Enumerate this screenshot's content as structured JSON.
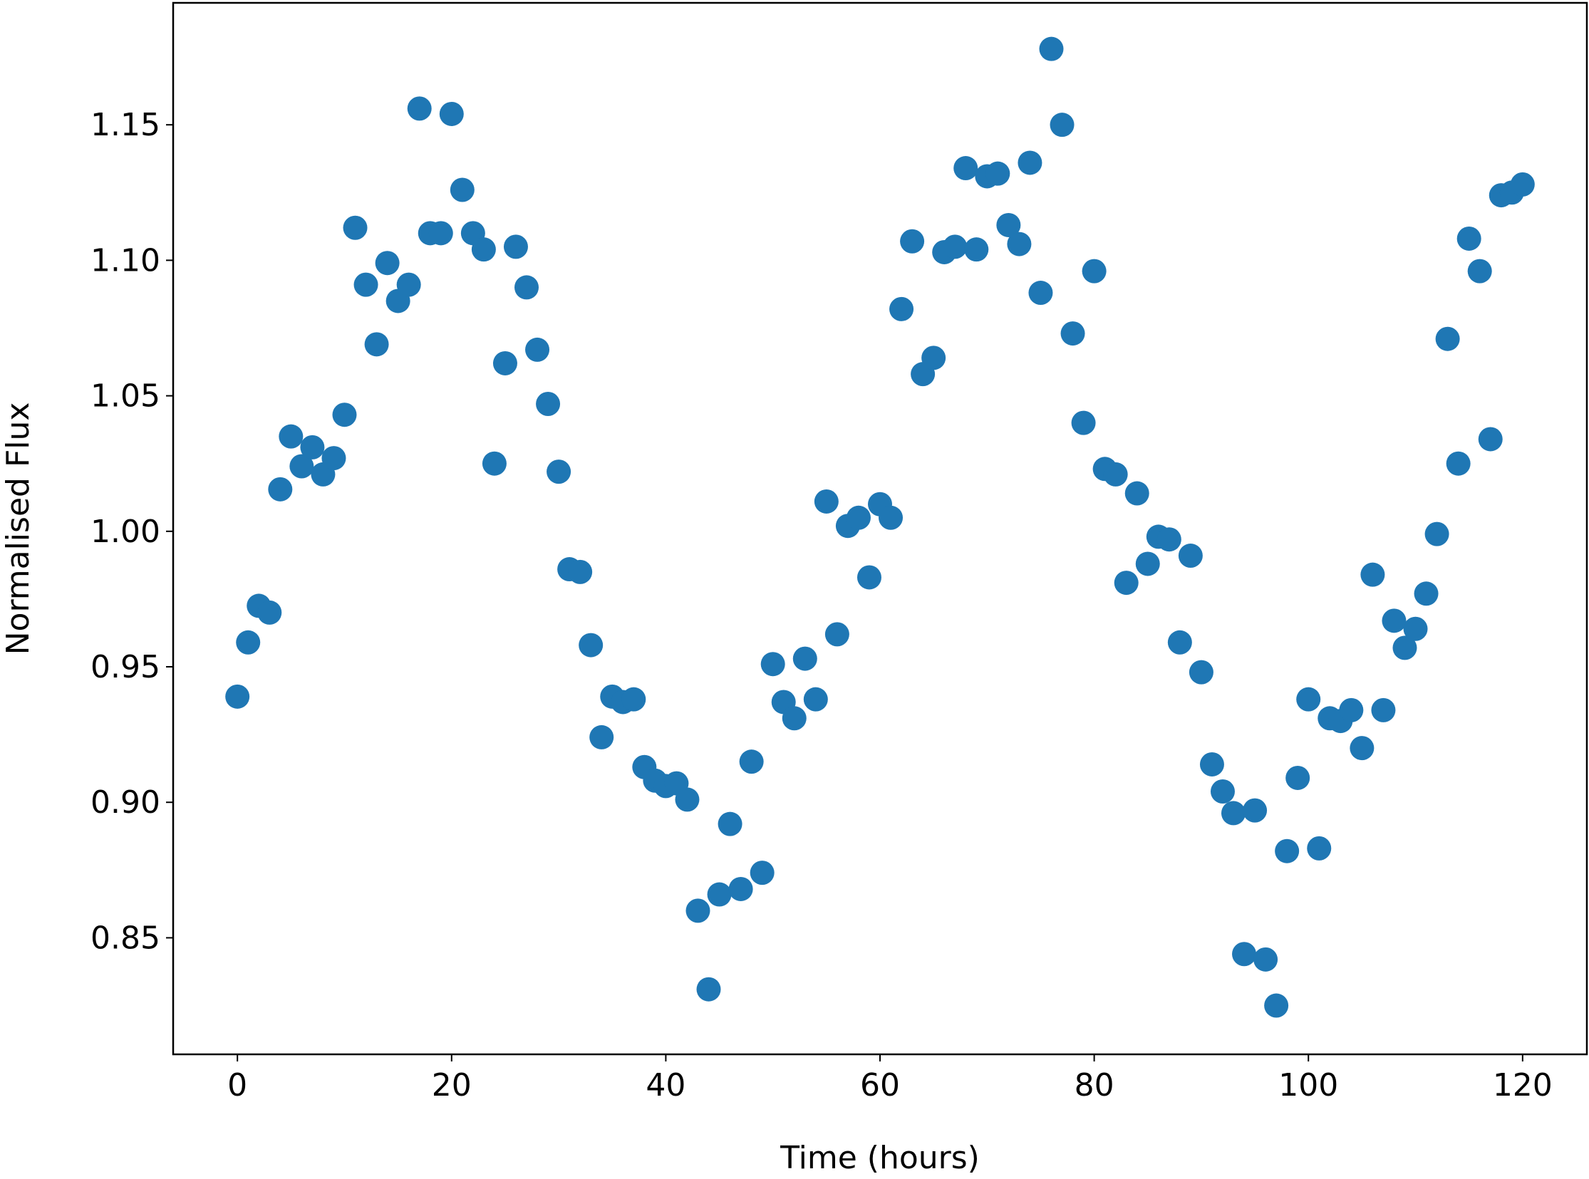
{
  "chart_data": {
    "type": "scatter",
    "xlabel": "Time (hours)",
    "ylabel": "Normalised Flux",
    "color": "#1f77b4",
    "x": [
      0,
      1,
      2,
      3,
      4,
      5,
      6,
      7,
      8,
      9,
      10,
      11,
      12,
      13,
      14,
      15,
      16,
      17,
      18,
      19,
      20,
      21,
      22,
      23,
      24,
      25,
      26,
      27,
      28,
      29,
      30,
      31,
      32,
      33,
      34,
      35,
      36,
      37,
      38,
      39,
      40,
      41,
      42,
      43,
      44,
      45,
      46,
      47,
      48,
      49,
      50,
      51,
      52,
      53,
      54,
      55,
      56,
      57,
      58,
      59,
      60,
      61,
      62,
      63,
      64,
      65,
      66,
      67,
      68,
      69,
      70,
      71,
      72,
      73,
      74,
      75,
      76,
      77,
      78,
      79,
      80,
      81,
      82,
      83,
      84,
      85,
      86,
      87,
      88,
      89,
      90,
      91,
      92,
      93,
      94,
      95,
      96,
      97,
      98,
      99,
      100,
      101,
      102,
      103,
      104,
      105,
      106,
      107,
      108,
      109,
      110,
      111,
      112,
      113,
      114,
      115,
      116,
      117,
      118,
      119,
      120
    ],
    "values": [
      0.939,
      0.959,
      0.9725,
      0.97,
      1.0155,
      1.035,
      1.024,
      1.031,
      1.021,
      1.027,
      1.043,
      1.112,
      1.091,
      1.069,
      1.099,
      1.085,
      1.091,
      1.156,
      1.11,
      1.11,
      1.154,
      1.126,
      1.11,
      1.104,
      1.025,
      1.062,
      1.105,
      1.09,
      1.067,
      1.047,
      1.022,
      0.986,
      0.985,
      0.958,
      0.924,
      0.939,
      0.937,
      0.938,
      0.913,
      0.908,
      0.906,
      0.907,
      0.901,
      0.86,
      0.831,
      0.866,
      0.892,
      0.868,
      0.915,
      0.874,
      0.951,
      0.937,
      0.931,
      0.953,
      0.938,
      1.011,
      0.962,
      1.002,
      1.005,
      0.983,
      1.01,
      1.005,
      1.082,
      1.107,
      1.058,
      1.064,
      1.103,
      1.105,
      1.134,
      1.104,
      1.131,
      1.132,
      1.113,
      1.106,
      1.136,
      1.088,
      1.178,
      1.15,
      1.073,
      1.04,
      1.096,
      1.023,
      1.021,
      0.981,
      1.014,
      0.988,
      0.998,
      0.997,
      0.959,
      0.991,
      0.948,
      0.914,
      0.904,
      0.896,
      0.844,
      0.897,
      0.842,
      0.825,
      0.882,
      0.909,
      0.938,
      0.883,
      0.931,
      0.93,
      0.934,
      0.92,
      0.984,
      0.934,
      0.967,
      0.957,
      0.964,
      0.977,
      0.999,
      1.071,
      1.025,
      1.108,
      1.096,
      1.034,
      1.124,
      1.125,
      1.128
    ],
    "xlim": [
      -6,
      126
    ],
    "ylim": [
      0.807,
      1.195
    ],
    "xticks": [
      0,
      20,
      40,
      60,
      80,
      100,
      120
    ],
    "yticks": [
      0.85,
      {
        "value": 0.9,
        "label": "0.90"
      },
      0.95,
      {
        "value": 1.0,
        "label": "1.00"
      },
      1.05,
      {
        "value": 1.1,
        "label": "1.10"
      },
      1.15
    ]
  }
}
